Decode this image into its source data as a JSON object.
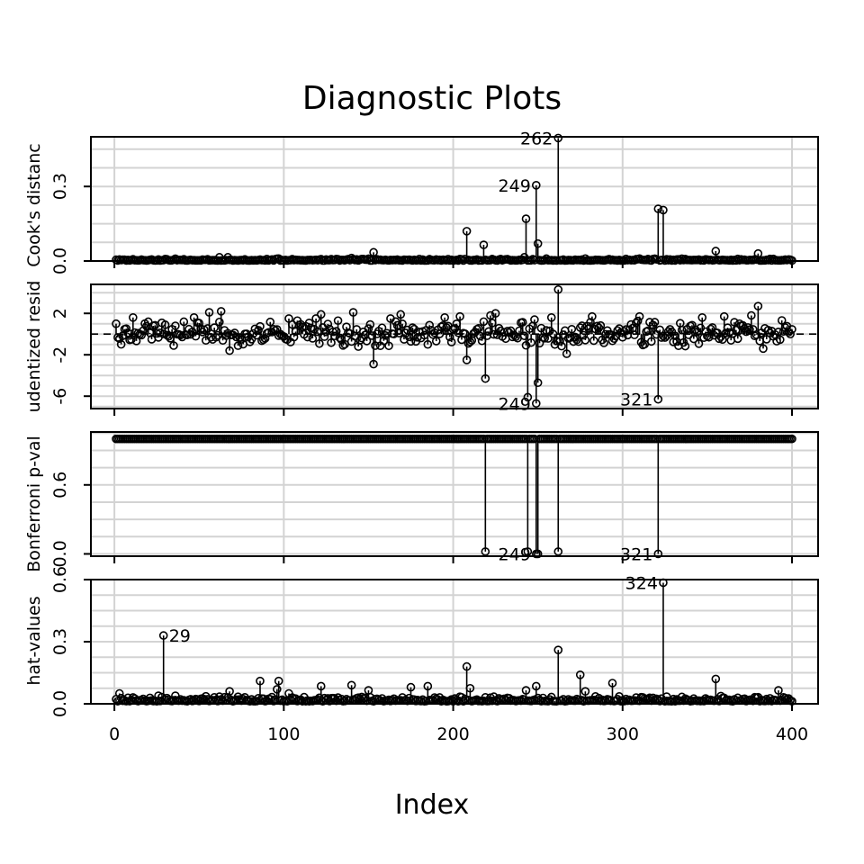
{
  "chart_data": {
    "type": "scatter",
    "title": "Diagnostic Plots",
    "xlabel": "Index",
    "x_ticks": [
      0,
      100,
      200,
      300,
      400
    ],
    "x_range": [
      1,
      400
    ],
    "grid": true,
    "panels": [
      {
        "name": "cooks",
        "ylabel": "Cook's distanc",
        "ylim": [
          0,
          0.5
        ],
        "y_ticks": [
          0.0,
          0.3
        ],
        "y_tick_labels": [
          "0.0",
          "0.3"
        ],
        "baseline": 0.0,
        "noise": {
          "base": 0.002,
          "spread": 0.008
        },
        "points": [
          {
            "x": 62,
            "y": 0.015
          },
          {
            "x": 67,
            "y": 0.015
          },
          {
            "x": 97,
            "y": 0.01
          },
          {
            "x": 140,
            "y": 0.012
          },
          {
            "x": 153,
            "y": 0.035
          },
          {
            "x": 208,
            "y": 0.12
          },
          {
            "x": 218,
            "y": 0.065
          },
          {
            "x": 242,
            "y": 0.015
          },
          {
            "x": 243,
            "y": 0.17
          },
          {
            "x": 249,
            "y": 0.305
          },
          {
            "x": 250,
            "y": 0.07
          },
          {
            "x": 262,
            "y": 0.495
          },
          {
            "x": 278,
            "y": 0.01
          },
          {
            "x": 310,
            "y": 0.01
          },
          {
            "x": 321,
            "y": 0.21
          },
          {
            "x": 324,
            "y": 0.205
          },
          {
            "x": 355,
            "y": 0.04
          },
          {
            "x": 380,
            "y": 0.03
          }
        ],
        "labels": [
          {
            "x": 262,
            "y": 0.495,
            "text": "262"
          },
          {
            "x": 249,
            "y": 0.305,
            "text": "249"
          }
        ]
      },
      {
        "name": "student",
        "ylabel": "udentized resid",
        "ylim": [
          -7.2,
          4.8
        ],
        "y_ticks": [
          -6,
          -2,
          2
        ],
        "y_tick_labels": [
          "-6",
          "-2",
          "2"
        ],
        "baseline": 0,
        "refline": 0,
        "noise": {
          "base": 0,
          "spread": 1.4
        },
        "points": [
          {
            "x": 11,
            "y": 1.6
          },
          {
            "x": 30,
            "y": 0.9
          },
          {
            "x": 36,
            "y": 0.8
          },
          {
            "x": 47,
            "y": 1.6
          },
          {
            "x": 56,
            "y": 2.1
          },
          {
            "x": 63,
            "y": 2.2
          },
          {
            "x": 68,
            "y": -1.6
          },
          {
            "x": 103,
            "y": 1.5
          },
          {
            "x": 108,
            "y": 1.3
          },
          {
            "x": 119,
            "y": 1.5
          },
          {
            "x": 122,
            "y": 1.9
          },
          {
            "x": 132,
            "y": 1.3
          },
          {
            "x": 141,
            "y": 2.1
          },
          {
            "x": 153,
            "y": -2.9
          },
          {
            "x": 163,
            "y": 1.5
          },
          {
            "x": 169,
            "y": 1.9
          },
          {
            "x": 195,
            "y": 1.6
          },
          {
            "x": 204,
            "y": 1.7
          },
          {
            "x": 208,
            "y": -2.5
          },
          {
            "x": 219,
            "y": -4.3
          },
          {
            "x": 222,
            "y": 1.8
          },
          {
            "x": 225,
            "y": 2.0
          },
          {
            "x": 244,
            "y": -6.1
          },
          {
            "x": 248,
            "y": 1.4
          },
          {
            "x": 249,
            "y": -6.7
          },
          {
            "x": 250,
            "y": -4.7
          },
          {
            "x": 258,
            "y": 1.6
          },
          {
            "x": 262,
            "y": 4.3
          },
          {
            "x": 267,
            "y": -1.9
          },
          {
            "x": 282,
            "y": 1.7
          },
          {
            "x": 310,
            "y": 1.7
          },
          {
            "x": 321,
            "y": -6.3
          },
          {
            "x": 347,
            "y": 1.6
          },
          {
            "x": 360,
            "y": 1.7
          },
          {
            "x": 376,
            "y": 1.8
          },
          {
            "x": 380,
            "y": 2.7
          },
          {
            "x": 383,
            "y": -1.4
          }
        ],
        "labels": [
          {
            "x": 249,
            "y": -6.7,
            "text": "249"
          },
          {
            "x": 321,
            "y": -6.3,
            "text": "321"
          }
        ]
      },
      {
        "name": "bonferroni",
        "ylabel": "Bonferroni p-val",
        "ylim": [
          -0.02,
          1.06
        ],
        "y_ticks": [
          0.0,
          0.6
        ],
        "y_tick_labels": [
          "0.0",
          "0.6"
        ],
        "baseline": 1.0,
        "noise": {
          "base": 1.0,
          "spread": 0
        },
        "points": [
          {
            "x": 219,
            "y": 0.02
          },
          {
            "x": 244,
            "y": 0.02
          },
          {
            "x": 249,
            "y": 0.0
          },
          {
            "x": 250,
            "y": 0.0
          },
          {
            "x": 262,
            "y": 0.02
          },
          {
            "x": 321,
            "y": 0.0
          }
        ],
        "labels": [
          {
            "x": 249,
            "y": 0.0,
            "text": "249"
          },
          {
            "x": 321,
            "y": 0.0,
            "text": "321"
          }
        ]
      },
      {
        "name": "hat",
        "ylabel": "hat-values",
        "ylim": [
          0,
          0.6
        ],
        "y_ticks": [
          0.0,
          0.3,
          0.6
        ],
        "y_tick_labels": [
          "0.0",
          "0.3",
          "0.6"
        ],
        "baseline": 0.0,
        "noise": {
          "base": 0.012,
          "spread": 0.03
        },
        "points": [
          {
            "x": 3,
            "y": 0.05
          },
          {
            "x": 29,
            "y": 0.33
          },
          {
            "x": 68,
            "y": 0.06
          },
          {
            "x": 86,
            "y": 0.11
          },
          {
            "x": 96,
            "y": 0.07
          },
          {
            "x": 97,
            "y": 0.11
          },
          {
            "x": 103,
            "y": 0.05
          },
          {
            "x": 122,
            "y": 0.085
          },
          {
            "x": 140,
            "y": 0.09
          },
          {
            "x": 150,
            "y": 0.065
          },
          {
            "x": 175,
            "y": 0.08
          },
          {
            "x": 185,
            "y": 0.085
          },
          {
            "x": 208,
            "y": 0.18
          },
          {
            "x": 210,
            "y": 0.075
          },
          {
            "x": 243,
            "y": 0.065
          },
          {
            "x": 249,
            "y": 0.085
          },
          {
            "x": 262,
            "y": 0.26
          },
          {
            "x": 275,
            "y": 0.14
          },
          {
            "x": 278,
            "y": 0.06
          },
          {
            "x": 294,
            "y": 0.1
          },
          {
            "x": 324,
            "y": 0.585
          },
          {
            "x": 355,
            "y": 0.12
          },
          {
            "x": 392,
            "y": 0.065
          }
        ],
        "labels": [
          {
            "x": 29,
            "y": 0.33,
            "text": "29"
          },
          {
            "x": 324,
            "y": 0.585,
            "text": "324"
          }
        ]
      }
    ]
  }
}
